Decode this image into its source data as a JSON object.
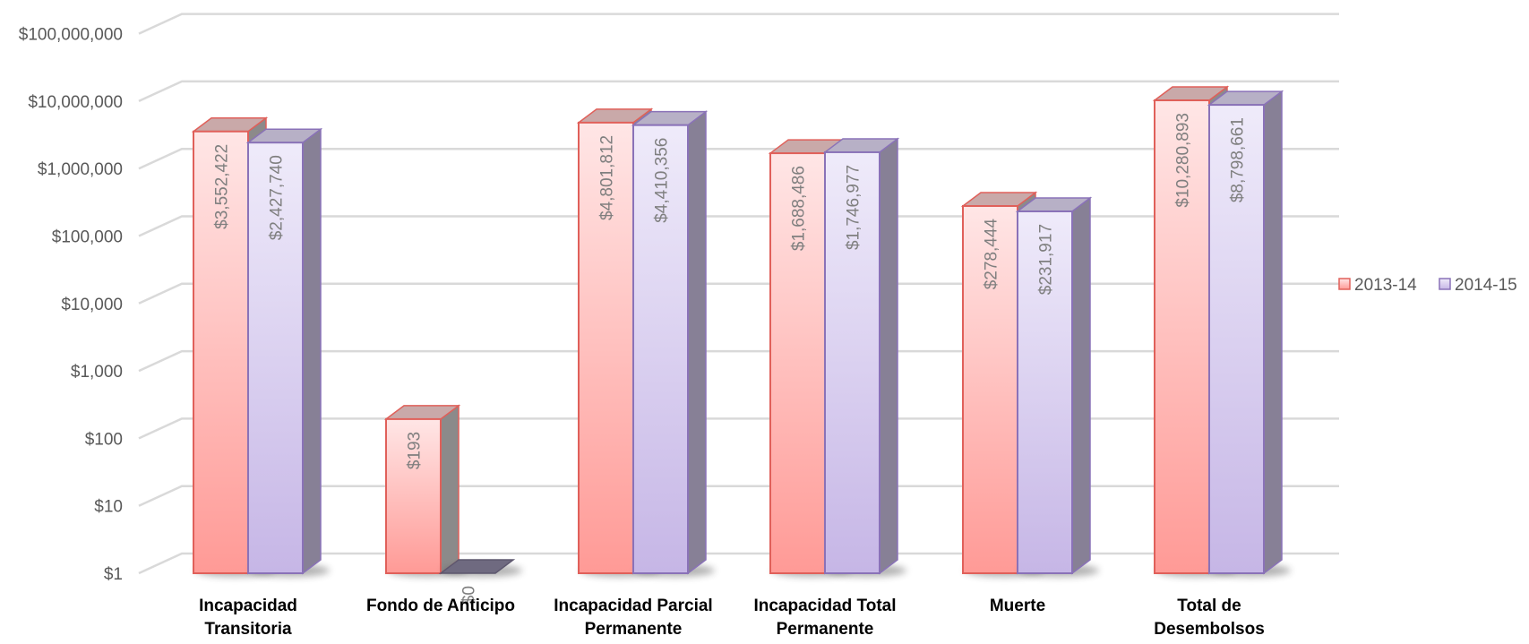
{
  "chart_data": {
    "type": "bar",
    "categories": [
      [
        "Incapacidad",
        "Transitoria"
      ],
      [
        "Fondo de Anticipo"
      ],
      [
        "Incapacidad Parcial",
        "Permanente"
      ],
      [
        "Incapacidad Total",
        "Permanente"
      ],
      [
        "Muerte"
      ],
      [
        "Total de",
        "Desembolsos"
      ]
    ],
    "series": [
      {
        "name": "2013-14",
        "values": [
          3552422,
          193,
          4801812,
          1688486,
          278444,
          10280893
        ],
        "labels": [
          "$3,552,422",
          "$193",
          "$4,801,812",
          "$1,688,486",
          "$278,444",
          "$10,280,893"
        ]
      },
      {
        "name": "2014-15",
        "values": [
          2427740,
          0,
          4410356,
          1746977,
          231917,
          8798661
        ],
        "labels": [
          "$2,427,740",
          "$0",
          "$4,410,356",
          "$1,746,977",
          "$231,917",
          "$8,798,661"
        ]
      }
    ],
    "y_scale": "log",
    "ylim": [
      1,
      100000000
    ],
    "y_ticks": [
      "$1",
      "$10",
      "$100",
      "$1,000",
      "$10,000",
      "$100,000",
      "$1,000,000",
      "$10,000,000",
      "$100,000,000"
    ],
    "grid": true,
    "legend_position": "right",
    "colors": {
      "2013-14": {
        "top": "#ffe6e6",
        "bottom": "#ff9a96",
        "side": "#8c8a8a",
        "cap": "#c9a9a9",
        "edge": "#e0605a"
      },
      "2014-15": {
        "top": "#efebfa",
        "bottom": "#c6b6e6",
        "side": "#878096",
        "cap": "#b7b0c6",
        "edge": "#8a72b8"
      }
    }
  }
}
